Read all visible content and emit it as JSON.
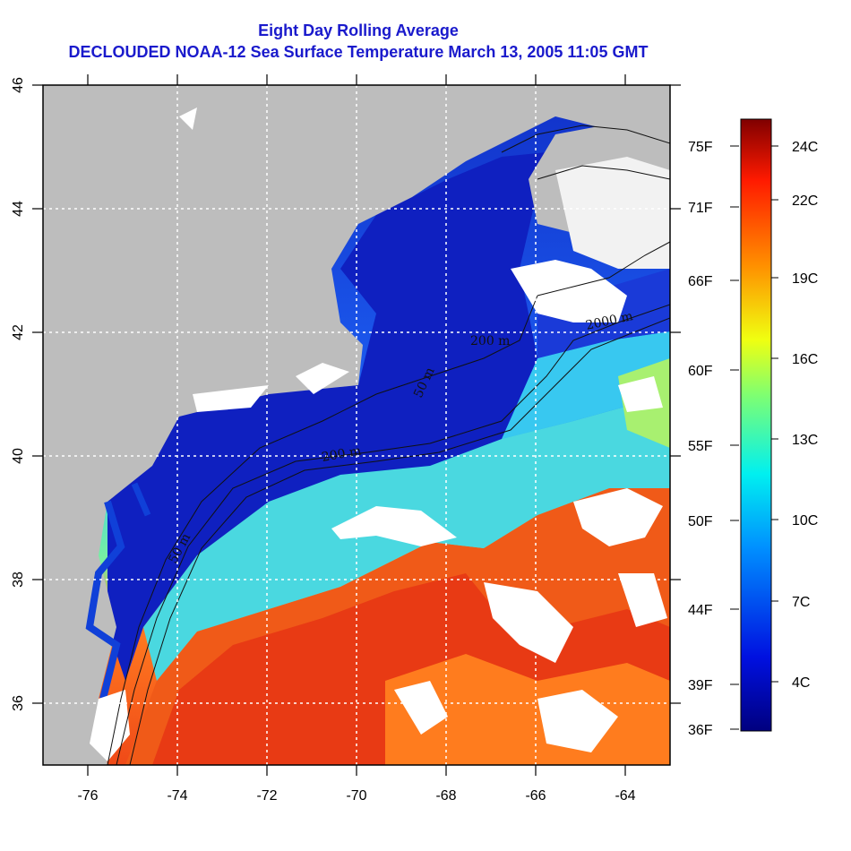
{
  "title_line1": "Eight Day Rolling Average",
  "title_line2": "DECLOUDED NOAA-12 Sea Surface Temperature March 13, 2005 11:05 GMT",
  "map": {
    "lon_ticks": [
      "-76",
      "-74",
      "-72",
      "-70",
      "-68",
      "-66",
      "-64"
    ],
    "lat_ticks": [
      "36",
      "38",
      "40",
      "42",
      "44",
      "46"
    ],
    "contour_labels": [
      "50 m",
      "200 m",
      "2000 m",
      "50 m",
      "200 m",
      "50 m",
      "200 m",
      "2000 m"
    ],
    "colors": {
      "land": "#bdbdbd",
      "cloud": "#ffffff",
      "cold": "#0a18b0",
      "warm": "#e83a14"
    }
  },
  "colorbar": {
    "fahrenheit": [
      "75F",
      "71F",
      "66F",
      "60F",
      "55F",
      "50F",
      "44F",
      "39F",
      "36F"
    ],
    "celsius": [
      "24C",
      "22C",
      "19C",
      "16C",
      "13C",
      "10C",
      "7C",
      "4C"
    ]
  }
}
